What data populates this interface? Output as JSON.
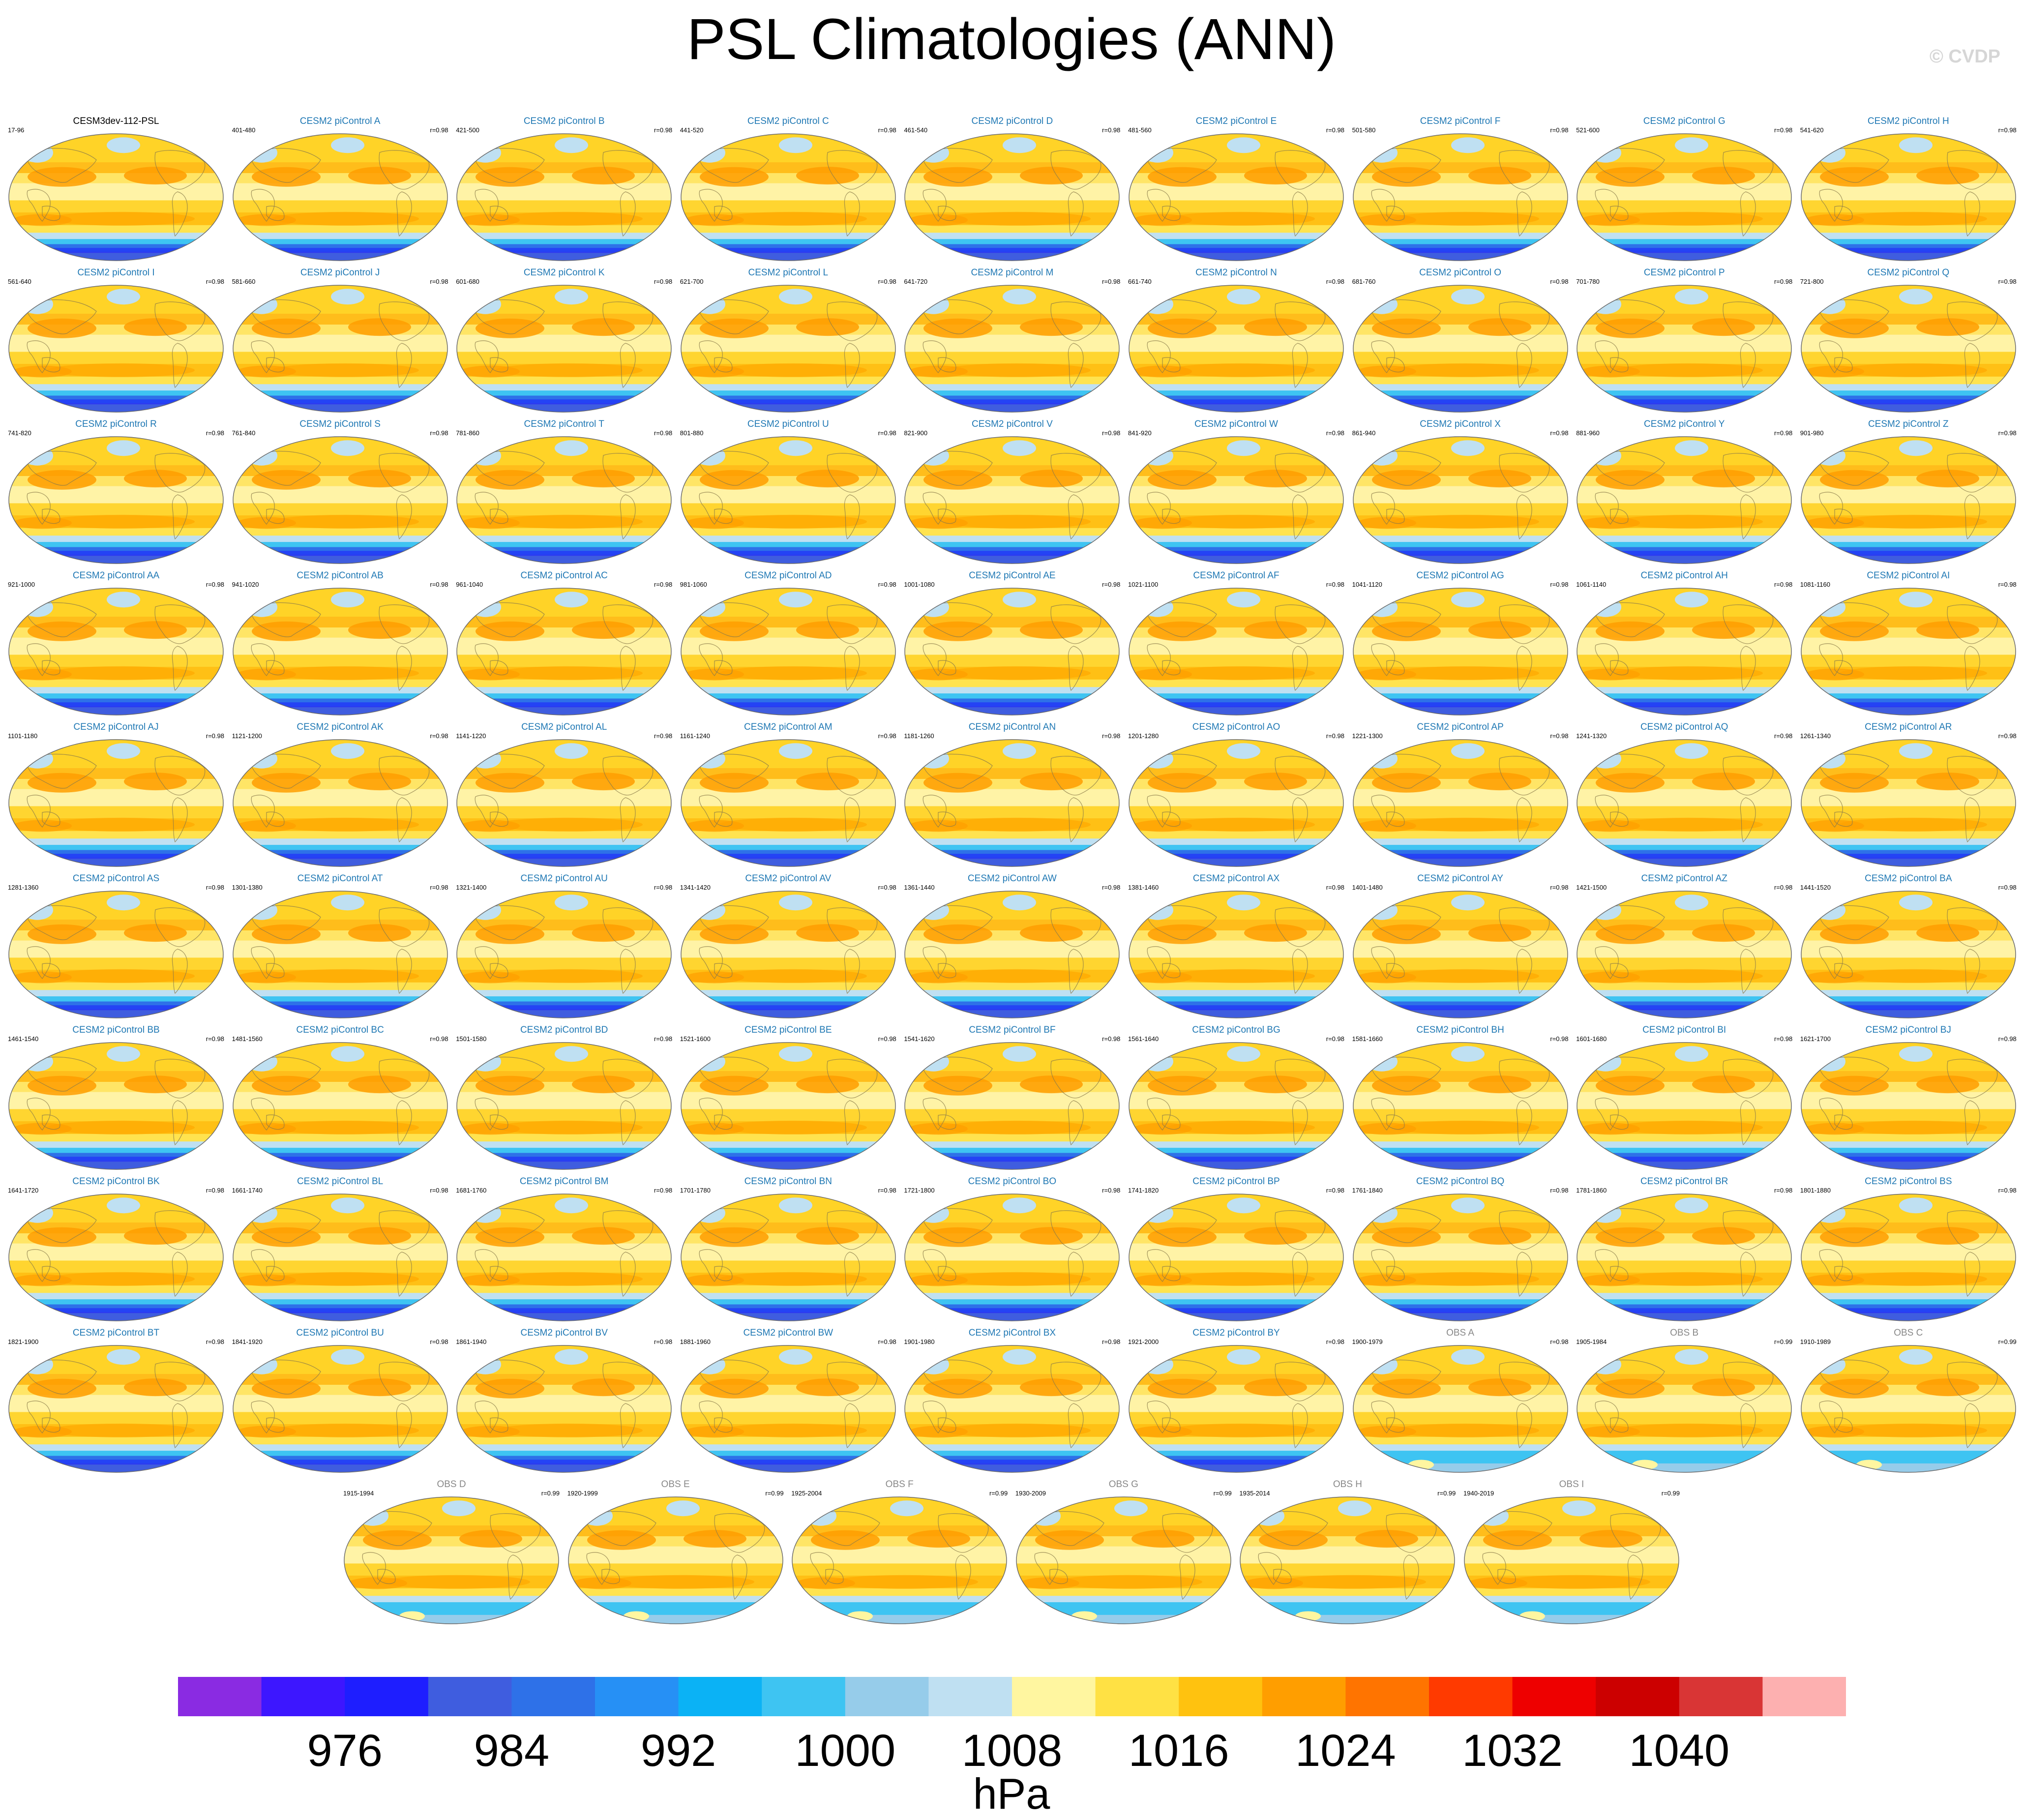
{
  "title": "PSL Climatologies (ANN)",
  "watermark": "© CVDP",
  "chart_data": {
    "type": "heatmap",
    "title": "PSL Climatologies (ANN)",
    "units": "hPa",
    "colorbar": {
      "colors": [
        "#8a2be2",
        "#3d16ff",
        "#1e1eff",
        "#3f5ddf",
        "#2e71e8",
        "#2690f5",
        "#0bb2f5",
        "#3ec4f2",
        "#96ccea",
        "#bfe0f2",
        "#fff6a0",
        "#ffe144",
        "#ffc20f",
        "#ff9e00",
        "#ff7400",
        "#ff3a00",
        "#ee0000",
        "#cc0000",
        "#d93535",
        "#fdb0b0"
      ],
      "tick_labels": [
        "976",
        "984",
        "992",
        "1000",
        "1008",
        "1016",
        "1024",
        "1032",
        "1040"
      ]
    },
    "panels": [
      {
        "title": "CESM3dev-112-PSL",
        "years": "17-96",
        "corr": "",
        "kind": "model"
      },
      {
        "title": "CESM2 piControl A",
        "years": "401-480",
        "corr": "r=0.98",
        "kind": "ens"
      },
      {
        "title": "CESM2 piControl B",
        "years": "421-500",
        "corr": "r=0.98",
        "kind": "ens"
      },
      {
        "title": "CESM2 piControl C",
        "years": "441-520",
        "corr": "r=0.98",
        "kind": "ens"
      },
      {
        "title": "CESM2 piControl D",
        "years": "461-540",
        "corr": "r=0.98",
        "kind": "ens"
      },
      {
        "title": "CESM2 piControl E",
        "years": "481-560",
        "corr": "r=0.98",
        "kind": "ens"
      },
      {
        "title": "CESM2 piControl F",
        "years": "501-580",
        "corr": "r=0.98",
        "kind": "ens"
      },
      {
        "title": "CESM2 piControl G",
        "years": "521-600",
        "corr": "r=0.98",
        "kind": "ens"
      },
      {
        "title": "CESM2 piControl H",
        "years": "541-620",
        "corr": "r=0.98",
        "kind": "ens"
      },
      {
        "title": "CESM2 piControl I",
        "years": "561-640",
        "corr": "r=0.98",
        "kind": "ens"
      },
      {
        "title": "CESM2 piControl J",
        "years": "581-660",
        "corr": "r=0.98",
        "kind": "ens"
      },
      {
        "title": "CESM2 piControl K",
        "years": "601-680",
        "corr": "r=0.98",
        "kind": "ens"
      },
      {
        "title": "CESM2 piControl L",
        "years": "621-700",
        "corr": "r=0.98",
        "kind": "ens"
      },
      {
        "title": "CESM2 piControl M",
        "years": "641-720",
        "corr": "r=0.98",
        "kind": "ens"
      },
      {
        "title": "CESM2 piControl N",
        "years": "661-740",
        "corr": "r=0.98",
        "kind": "ens"
      },
      {
        "title": "CESM2 piControl O",
        "years": "681-760",
        "corr": "r=0.98",
        "kind": "ens"
      },
      {
        "title": "CESM2 piControl P",
        "years": "701-780",
        "corr": "r=0.98",
        "kind": "ens"
      },
      {
        "title": "CESM2 piControl Q",
        "years": "721-800",
        "corr": "r=0.98",
        "kind": "ens"
      },
      {
        "title": "CESM2 piControl R",
        "years": "741-820",
        "corr": "r=0.98",
        "kind": "ens"
      },
      {
        "title": "CESM2 piControl S",
        "years": "761-840",
        "corr": "r=0.98",
        "kind": "ens"
      },
      {
        "title": "CESM2 piControl T",
        "years": "781-860",
        "corr": "r=0.98",
        "kind": "ens"
      },
      {
        "title": "CESM2 piControl U",
        "years": "801-880",
        "corr": "r=0.98",
        "kind": "ens"
      },
      {
        "title": "CESM2 piControl V",
        "years": "821-900",
        "corr": "r=0.98",
        "kind": "ens"
      },
      {
        "title": "CESM2 piControl W",
        "years": "841-920",
        "corr": "r=0.98",
        "kind": "ens"
      },
      {
        "title": "CESM2 piControl X",
        "years": "861-940",
        "corr": "r=0.98",
        "kind": "ens"
      },
      {
        "title": "CESM2 piControl Y",
        "years": "881-960",
        "corr": "r=0.98",
        "kind": "ens"
      },
      {
        "title": "CESM2 piControl Z",
        "years": "901-980",
        "corr": "r=0.98",
        "kind": "ens"
      },
      {
        "title": "CESM2 piControl AA",
        "years": "921-1000",
        "corr": "r=0.98",
        "kind": "ens"
      },
      {
        "title": "CESM2 piControl AB",
        "years": "941-1020",
        "corr": "r=0.98",
        "kind": "ens"
      },
      {
        "title": "CESM2 piControl AC",
        "years": "961-1040",
        "corr": "r=0.98",
        "kind": "ens"
      },
      {
        "title": "CESM2 piControl AD",
        "years": "981-1060",
        "corr": "r=0.98",
        "kind": "ens"
      },
      {
        "title": "CESM2 piControl AE",
        "years": "1001-1080",
        "corr": "r=0.98",
        "kind": "ens"
      },
      {
        "title": "CESM2 piControl AF",
        "years": "1021-1100",
        "corr": "r=0.98",
        "kind": "ens"
      },
      {
        "title": "CESM2 piControl AG",
        "years": "1041-1120",
        "corr": "r=0.98",
        "kind": "ens"
      },
      {
        "title": "CESM2 piControl AH",
        "years": "1061-1140",
        "corr": "r=0.98",
        "kind": "ens"
      },
      {
        "title": "CESM2 piControl AI",
        "years": "1081-1160",
        "corr": "r=0.98",
        "kind": "ens"
      },
      {
        "title": "CESM2 piControl AJ",
        "years": "1101-1180",
        "corr": "r=0.98",
        "kind": "ens"
      },
      {
        "title": "CESM2 piControl AK",
        "years": "1121-1200",
        "corr": "r=0.98",
        "kind": "ens"
      },
      {
        "title": "CESM2 piControl AL",
        "years": "1141-1220",
        "corr": "r=0.98",
        "kind": "ens"
      },
      {
        "title": "CESM2 piControl AM",
        "years": "1161-1240",
        "corr": "r=0.98",
        "kind": "ens"
      },
      {
        "title": "CESM2 piControl AN",
        "years": "1181-1260",
        "corr": "r=0.98",
        "kind": "ens"
      },
      {
        "title": "CESM2 piControl AO",
        "years": "1201-1280",
        "corr": "r=0.98",
        "kind": "ens"
      },
      {
        "title": "CESM2 piControl AP",
        "years": "1221-1300",
        "corr": "r=0.98",
        "kind": "ens"
      },
      {
        "title": "CESM2 piControl AQ",
        "years": "1241-1320",
        "corr": "r=0.98",
        "kind": "ens"
      },
      {
        "title": "CESM2 piControl AR",
        "years": "1261-1340",
        "corr": "r=0.98",
        "kind": "ens"
      },
      {
        "title": "CESM2 piControl AS",
        "years": "1281-1360",
        "corr": "r=0.98",
        "kind": "ens"
      },
      {
        "title": "CESM2 piControl AT",
        "years": "1301-1380",
        "corr": "r=0.98",
        "kind": "ens"
      },
      {
        "title": "CESM2 piControl AU",
        "years": "1321-1400",
        "corr": "r=0.98",
        "kind": "ens"
      },
      {
        "title": "CESM2 piControl AV",
        "years": "1341-1420",
        "corr": "r=0.98",
        "kind": "ens"
      },
      {
        "title": "CESM2 piControl AW",
        "years": "1361-1440",
        "corr": "r=0.98",
        "kind": "ens"
      },
      {
        "title": "CESM2 piControl AX",
        "years": "1381-1460",
        "corr": "r=0.98",
        "kind": "ens"
      },
      {
        "title": "CESM2 piControl AY",
        "years": "1401-1480",
        "corr": "r=0.98",
        "kind": "ens"
      },
      {
        "title": "CESM2 piControl AZ",
        "years": "1421-1500",
        "corr": "r=0.98",
        "kind": "ens"
      },
      {
        "title": "CESM2 piControl BA",
        "years": "1441-1520",
        "corr": "r=0.98",
        "kind": "ens"
      },
      {
        "title": "CESM2 piControl BB",
        "years": "1461-1540",
        "corr": "r=0.98",
        "kind": "ens"
      },
      {
        "title": "CESM2 piControl BC",
        "years": "1481-1560",
        "corr": "r=0.98",
        "kind": "ens"
      },
      {
        "title": "CESM2 piControl BD",
        "years": "1501-1580",
        "corr": "r=0.98",
        "kind": "ens"
      },
      {
        "title": "CESM2 piControl BE",
        "years": "1521-1600",
        "corr": "r=0.98",
        "kind": "ens"
      },
      {
        "title": "CESM2 piControl BF",
        "years": "1541-1620",
        "corr": "r=0.98",
        "kind": "ens"
      },
      {
        "title": "CESM2 piControl BG",
        "years": "1561-1640",
        "corr": "r=0.98",
        "kind": "ens"
      },
      {
        "title": "CESM2 piControl BH",
        "years": "1581-1660",
        "corr": "r=0.98",
        "kind": "ens"
      },
      {
        "title": "CESM2 piControl BI",
        "years": "1601-1680",
        "corr": "r=0.98",
        "kind": "ens"
      },
      {
        "title": "CESM2 piControl BJ",
        "years": "1621-1700",
        "corr": "r=0.98",
        "kind": "ens"
      },
      {
        "title": "CESM2 piControl BK",
        "years": "1641-1720",
        "corr": "r=0.98",
        "kind": "ens"
      },
      {
        "title": "CESM2 piControl BL",
        "years": "1661-1740",
        "corr": "r=0.98",
        "kind": "ens"
      },
      {
        "title": "CESM2 piControl BM",
        "years": "1681-1760",
        "corr": "r=0.98",
        "kind": "ens"
      },
      {
        "title": "CESM2 piControl BN",
        "years": "1701-1780",
        "corr": "r=0.98",
        "kind": "ens"
      },
      {
        "title": "CESM2 piControl BO",
        "years": "1721-1800",
        "corr": "r=0.98",
        "kind": "ens"
      },
      {
        "title": "CESM2 piControl BP",
        "years": "1741-1820",
        "corr": "r=0.98",
        "kind": "ens"
      },
      {
        "title": "CESM2 piControl BQ",
        "years": "1761-1840",
        "corr": "r=0.98",
        "kind": "ens"
      },
      {
        "title": "CESM2 piControl BR",
        "years": "1781-1860",
        "corr": "r=0.98",
        "kind": "ens"
      },
      {
        "title": "CESM2 piControl BS",
        "years": "1801-1880",
        "corr": "r=0.98",
        "kind": "ens"
      },
      {
        "title": "CESM2 piControl BT",
        "years": "1821-1900",
        "corr": "r=0.98",
        "kind": "ens"
      },
      {
        "title": "CESM2 piControl BU",
        "years": "1841-1920",
        "corr": "r=0.98",
        "kind": "ens"
      },
      {
        "title": "CESM2 piControl BV",
        "years": "1861-1940",
        "corr": "r=0.98",
        "kind": "ens"
      },
      {
        "title": "CESM2 piControl BW",
        "years": "1881-1960",
        "corr": "r=0.98",
        "kind": "ens"
      },
      {
        "title": "CESM2 piControl BX",
        "years": "1901-1980",
        "corr": "r=0.98",
        "kind": "ens"
      },
      {
        "title": "CESM2 piControl BY",
        "years": "1921-2000",
        "corr": "r=0.98",
        "kind": "ens"
      },
      {
        "title": "OBS A",
        "years": "1900-1979",
        "corr": "r=0.98",
        "kind": "obs"
      },
      {
        "title": "OBS B",
        "years": "1905-1984",
        "corr": "r=0.99",
        "kind": "obs"
      },
      {
        "title": "OBS C",
        "years": "1910-1989",
        "corr": "r=0.99",
        "kind": "obs"
      },
      {
        "title": "OBS D",
        "years": "1915-1994",
        "corr": "r=0.99",
        "kind": "obs"
      },
      {
        "title": "OBS E",
        "years": "1920-1999",
        "corr": "r=0.99",
        "kind": "obs"
      },
      {
        "title": "OBS F",
        "years": "1925-2004",
        "corr": "r=0.99",
        "kind": "obs"
      },
      {
        "title": "OBS G",
        "years": "1930-2009",
        "corr": "r=0.99",
        "kind": "obs"
      },
      {
        "title": "OBS H",
        "years": "1935-2014",
        "corr": "r=0.99",
        "kind": "obs"
      },
      {
        "title": "OBS I",
        "years": "1940-2019",
        "corr": "r=0.99",
        "kind": "obs"
      }
    ]
  }
}
